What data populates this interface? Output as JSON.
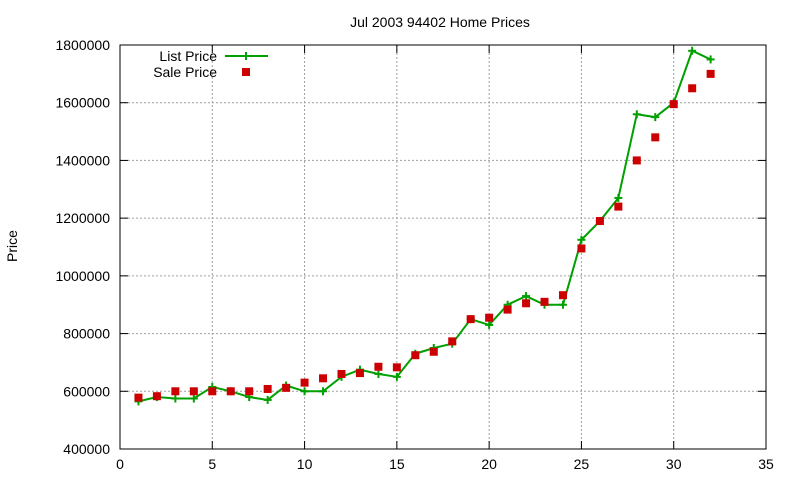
{
  "chart_data": {
    "type": "line",
    "title": "Jul 2003 94402 Home Prices",
    "xlabel": "",
    "ylabel": "Price",
    "xlim": [
      0,
      35
    ],
    "ylim": [
      400000,
      1800000
    ],
    "x_ticks": [
      0,
      5,
      10,
      15,
      20,
      25,
      30,
      35
    ],
    "y_ticks": [
      400000,
      600000,
      800000,
      1000000,
      1200000,
      1400000,
      1600000,
      1800000
    ],
    "grid": true,
    "legend_position": "top-left",
    "series": [
      {
        "name": "List Price",
        "style": "line-plus",
        "color": "#00a000",
        "x": [
          1,
          2,
          3,
          4,
          5,
          6,
          7,
          8,
          9,
          10,
          11,
          12,
          13,
          14,
          15,
          16,
          17,
          18,
          19,
          20,
          21,
          22,
          23,
          24,
          25,
          26,
          27,
          28,
          29,
          30,
          31,
          32
        ],
        "y": [
          565000,
          580000,
          575000,
          575000,
          615000,
          600000,
          580000,
          570000,
          620000,
          600000,
          600000,
          650000,
          675000,
          660000,
          650000,
          730000,
          750000,
          765000,
          850000,
          830000,
          900000,
          930000,
          900000,
          900000,
          1125000,
          1190000,
          1270000,
          1560000,
          1550000,
          1600000,
          1780000,
          1750000
        ]
      },
      {
        "name": "Sale Price",
        "style": "square-points",
        "color": "#cc0000",
        "x": [
          1,
          2,
          3,
          4,
          5,
          6,
          7,
          8,
          9,
          10,
          11,
          12,
          13,
          14,
          15,
          16,
          17,
          18,
          19,
          20,
          21,
          22,
          23,
          24,
          25,
          26,
          27,
          28,
          29,
          30,
          31,
          32
        ],
        "y": [
          578000,
          583000,
          600000,
          600000,
          600000,
          600000,
          600000,
          608000,
          612000,
          630000,
          645000,
          660000,
          663000,
          685000,
          683000,
          725000,
          737000,
          773000,
          850000,
          855000,
          883000,
          905000,
          910000,
          933000,
          1095000,
          1190000,
          1240000,
          1400000,
          1480000,
          1595000,
          1650000,
          1700000
        ]
      }
    ]
  }
}
